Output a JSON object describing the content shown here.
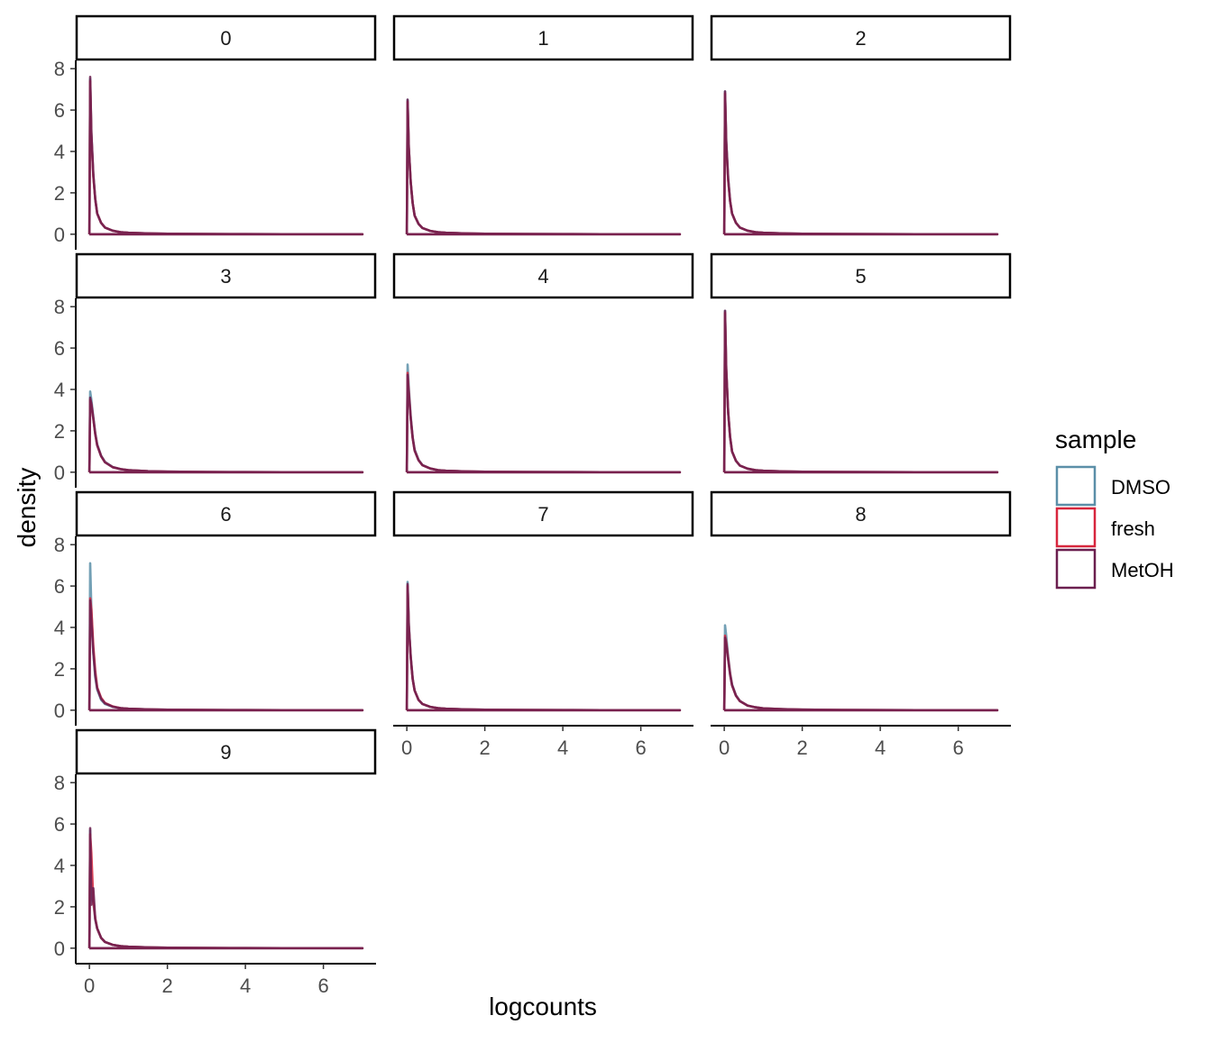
{
  "chart_data": {
    "type": "line",
    "layout": "facet_wrap",
    "xlabel": "logcounts",
    "ylabel": "density",
    "xlim": [
      -0.35,
      7.35
    ],
    "ylim": [
      -0.4,
      8.4
    ],
    "x_ticks": [
      0,
      2,
      4,
      6
    ],
    "y_ticks": [
      0,
      2,
      4,
      6,
      8
    ],
    "grid": false,
    "legend": {
      "title": "sample",
      "position": "right",
      "entries": [
        {
          "name": "DMSO",
          "color": "#5b8fa8"
        },
        {
          "name": "fresh",
          "color": "#d7263d"
        },
        {
          "name": "MetOH",
          "color": "#6b1f4f"
        }
      ]
    },
    "x_samples": [
      0,
      0.02,
      0.05,
      0.1,
      0.15,
      0.2,
      0.3,
      0.4,
      0.6,
      0.8,
      1.0,
      1.5,
      2.0,
      3.0,
      4.0,
      5.0,
      6.0,
      7.0
    ],
    "panels": [
      {
        "label": "0",
        "series": [
          {
            "name": "DMSO",
            "y": [
              0,
              7.5,
              4.9,
              2.9,
              1.7,
              1.0,
              0.55,
              0.32,
              0.17,
              0.1,
              0.07,
              0.04,
              0.02,
              0.01,
              0.005,
              0.003,
              0.002,
              0
            ]
          },
          {
            "name": "fresh",
            "y": [
              0,
              7.4,
              4.8,
              2.8,
              1.7,
              1.0,
              0.55,
              0.32,
              0.17,
              0.1,
              0.07,
              0.04,
              0.02,
              0.01,
              0.005,
              0.003,
              0.002,
              0
            ]
          },
          {
            "name": "MetOH",
            "y": [
              0,
              7.6,
              4.9,
              2.9,
              1.7,
              1.0,
              0.55,
              0.32,
              0.17,
              0.1,
              0.07,
              0.04,
              0.02,
              0.01,
              0.005,
              0.003,
              0.002,
              0
            ]
          }
        ]
      },
      {
        "label": "1",
        "series": [
          {
            "name": "DMSO",
            "y": [
              0,
              6.5,
              4.2,
              2.5,
              1.5,
              0.9,
              0.5,
              0.3,
              0.16,
              0.1,
              0.07,
              0.04,
              0.02,
              0.01,
              0.005,
              0.003,
              0.002,
              0
            ]
          },
          {
            "name": "fresh",
            "y": [
              0,
              6.4,
              4.2,
              2.5,
              1.5,
              0.9,
              0.5,
              0.3,
              0.16,
              0.1,
              0.07,
              0.04,
              0.02,
              0.01,
              0.005,
              0.003,
              0.002,
              0
            ]
          },
          {
            "name": "MetOH",
            "y": [
              0,
              6.5,
              4.2,
              2.5,
              1.5,
              0.9,
              0.5,
              0.3,
              0.16,
              0.1,
              0.07,
              0.04,
              0.02,
              0.01,
              0.005,
              0.003,
              0.002,
              0
            ]
          }
        ]
      },
      {
        "label": "2",
        "series": [
          {
            "name": "DMSO",
            "y": [
              0,
              6.9,
              4.5,
              2.7,
              1.6,
              1.0,
              0.55,
              0.32,
              0.17,
              0.1,
              0.07,
              0.04,
              0.02,
              0.01,
              0.005,
              0.003,
              0.002,
              0
            ]
          },
          {
            "name": "fresh",
            "y": [
              0,
              6.8,
              4.4,
              2.6,
              1.6,
              1.0,
              0.55,
              0.32,
              0.17,
              0.1,
              0.07,
              0.04,
              0.02,
              0.01,
              0.005,
              0.003,
              0.002,
              0
            ]
          },
          {
            "name": "MetOH",
            "y": [
              0,
              6.9,
              4.5,
              2.7,
              1.6,
              1.0,
              0.55,
              0.32,
              0.17,
              0.1,
              0.07,
              0.04,
              0.02,
              0.01,
              0.005,
              0.003,
              0.002,
              0
            ]
          }
        ]
      },
      {
        "label": "3",
        "series": [
          {
            "name": "DMSO",
            "y": [
              0,
              3.9,
              3.5,
              2.7,
              1.9,
              1.35,
              0.8,
              0.5,
              0.25,
              0.15,
              0.1,
              0.05,
              0.03,
              0.01,
              0.005,
              0.003,
              0.002,
              0
            ]
          },
          {
            "name": "fresh",
            "y": [
              0,
              3.5,
              3.3,
              2.6,
              1.85,
              1.3,
              0.78,
              0.48,
              0.24,
              0.15,
              0.1,
              0.05,
              0.03,
              0.01,
              0.005,
              0.003,
              0.002,
              0
            ]
          },
          {
            "name": "MetOH",
            "y": [
              0,
              3.6,
              3.3,
              2.6,
              1.85,
              1.3,
              0.78,
              0.48,
              0.24,
              0.15,
              0.1,
              0.05,
              0.03,
              0.01,
              0.005,
              0.003,
              0.002,
              0
            ]
          }
        ]
      },
      {
        "label": "4",
        "series": [
          {
            "name": "DMSO",
            "y": [
              0,
              5.2,
              4.1,
              2.7,
              1.7,
              1.1,
              0.6,
              0.35,
              0.18,
              0.1,
              0.07,
              0.04,
              0.02,
              0.01,
              0.005,
              0.003,
              0.002,
              0
            ]
          },
          {
            "name": "fresh",
            "y": [
              0,
              4.8,
              3.9,
              2.6,
              1.65,
              1.05,
              0.58,
              0.34,
              0.18,
              0.1,
              0.07,
              0.04,
              0.02,
              0.01,
              0.005,
              0.003,
              0.002,
              0
            ]
          },
          {
            "name": "MetOH",
            "y": [
              0,
              4.7,
              3.8,
              2.6,
              1.65,
              1.05,
              0.58,
              0.34,
              0.18,
              0.1,
              0.07,
              0.04,
              0.02,
              0.01,
              0.005,
              0.003,
              0.002,
              0
            ]
          }
        ]
      },
      {
        "label": "5",
        "series": [
          {
            "name": "DMSO",
            "y": [
              0,
              7.8,
              5.0,
              2.9,
              1.7,
              1.0,
              0.55,
              0.32,
              0.17,
              0.1,
              0.07,
              0.04,
              0.02,
              0.01,
              0.005,
              0.003,
              0.002,
              0
            ]
          },
          {
            "name": "fresh",
            "y": [
              0,
              7.7,
              5.0,
              2.9,
              1.7,
              1.0,
              0.55,
              0.32,
              0.17,
              0.1,
              0.07,
              0.04,
              0.02,
              0.01,
              0.005,
              0.003,
              0.002,
              0
            ]
          },
          {
            "name": "MetOH",
            "y": [
              0,
              7.8,
              5.0,
              2.9,
              1.7,
              1.0,
              0.55,
              0.32,
              0.17,
              0.1,
              0.07,
              0.04,
              0.02,
              0.01,
              0.005,
              0.003,
              0.002,
              0
            ]
          }
        ]
      },
      {
        "label": "6",
        "series": [
          {
            "name": "DMSO",
            "y": [
              0,
              7.1,
              4.9,
              2.8,
              1.6,
              1.0,
              0.5,
              0.3,
              0.16,
              0.1,
              0.07,
              0.04,
              0.02,
              0.01,
              0.005,
              0.003,
              0.002,
              0
            ]
          },
          {
            "name": "fresh",
            "y": [
              0,
              5.4,
              4.9,
              3.1,
              1.9,
              1.1,
              0.6,
              0.35,
              0.18,
              0.1,
              0.07,
              0.04,
              0.02,
              0.01,
              0.005,
              0.003,
              0.002,
              0
            ]
          },
          {
            "name": "MetOH",
            "y": [
              0,
              5.3,
              4.3,
              2.8,
              1.7,
              1.05,
              0.55,
              0.33,
              0.17,
              0.1,
              0.07,
              0.04,
              0.02,
              0.01,
              0.005,
              0.003,
              0.002,
              0
            ]
          }
        ]
      },
      {
        "label": "7",
        "series": [
          {
            "name": "DMSO",
            "y": [
              0,
              6.2,
              4.2,
              2.6,
              1.55,
              0.95,
              0.5,
              0.3,
              0.16,
              0.1,
              0.07,
              0.04,
              0.02,
              0.01,
              0.005,
              0.003,
              0.002,
              0
            ]
          },
          {
            "name": "fresh",
            "y": [
              0,
              6.0,
              4.1,
              2.55,
              1.5,
              0.95,
              0.5,
              0.3,
              0.16,
              0.1,
              0.07,
              0.04,
              0.02,
              0.01,
              0.005,
              0.003,
              0.002,
              0
            ]
          },
          {
            "name": "MetOH",
            "y": [
              0,
              6.1,
              4.1,
              2.55,
              1.5,
              0.95,
              0.5,
              0.3,
              0.16,
              0.1,
              0.07,
              0.04,
              0.02,
              0.01,
              0.005,
              0.003,
              0.002,
              0
            ]
          }
        ]
      },
      {
        "label": "8",
        "series": [
          {
            "name": "DMSO",
            "y": [
              0,
              4.1,
              3.6,
              2.6,
              1.8,
              1.25,
              0.72,
              0.45,
              0.22,
              0.14,
              0.09,
              0.05,
              0.03,
              0.01,
              0.005,
              0.003,
              0.002,
              0
            ]
          },
          {
            "name": "fresh",
            "y": [
              0,
              3.6,
              3.3,
              2.5,
              1.75,
              1.2,
              0.7,
              0.44,
              0.22,
              0.14,
              0.09,
              0.05,
              0.03,
              0.01,
              0.005,
              0.003,
              0.002,
              0
            ]
          },
          {
            "name": "MetOH",
            "y": [
              0,
              3.5,
              3.2,
              2.45,
              1.72,
              1.2,
              0.7,
              0.44,
              0.22,
              0.14,
              0.09,
              0.05,
              0.03,
              0.01,
              0.005,
              0.003,
              0.002,
              0
            ]
          }
        ]
      },
      {
        "label": "9",
        "series": [
          {
            "name": "DMSO",
            "y": [
              0,
              5.7,
              2.5,
              2.2,
              1.4,
              0.95,
              0.5,
              0.3,
              0.16,
              0.1,
              0.07,
              0.04,
              0.02,
              0.01,
              0.005,
              0.003,
              0.002,
              0
            ]
          },
          {
            "name": "fresh",
            "y": [
              0,
              5.5,
              4.6,
              2.3,
              1.45,
              0.95,
              0.5,
              0.3,
              0.16,
              0.1,
              0.07,
              0.04,
              0.02,
              0.01,
              0.005,
              0.003,
              0.002,
              0
            ]
          },
          {
            "name": "MetOH",
            "y": [
              0,
              5.8,
              2.1,
              2.9,
              1.4,
              0.95,
              0.5,
              0.3,
              0.16,
              0.1,
              0.07,
              0.04,
              0.02,
              0.01,
              0.005,
              0.003,
              0.002,
              0
            ]
          }
        ]
      }
    ]
  }
}
